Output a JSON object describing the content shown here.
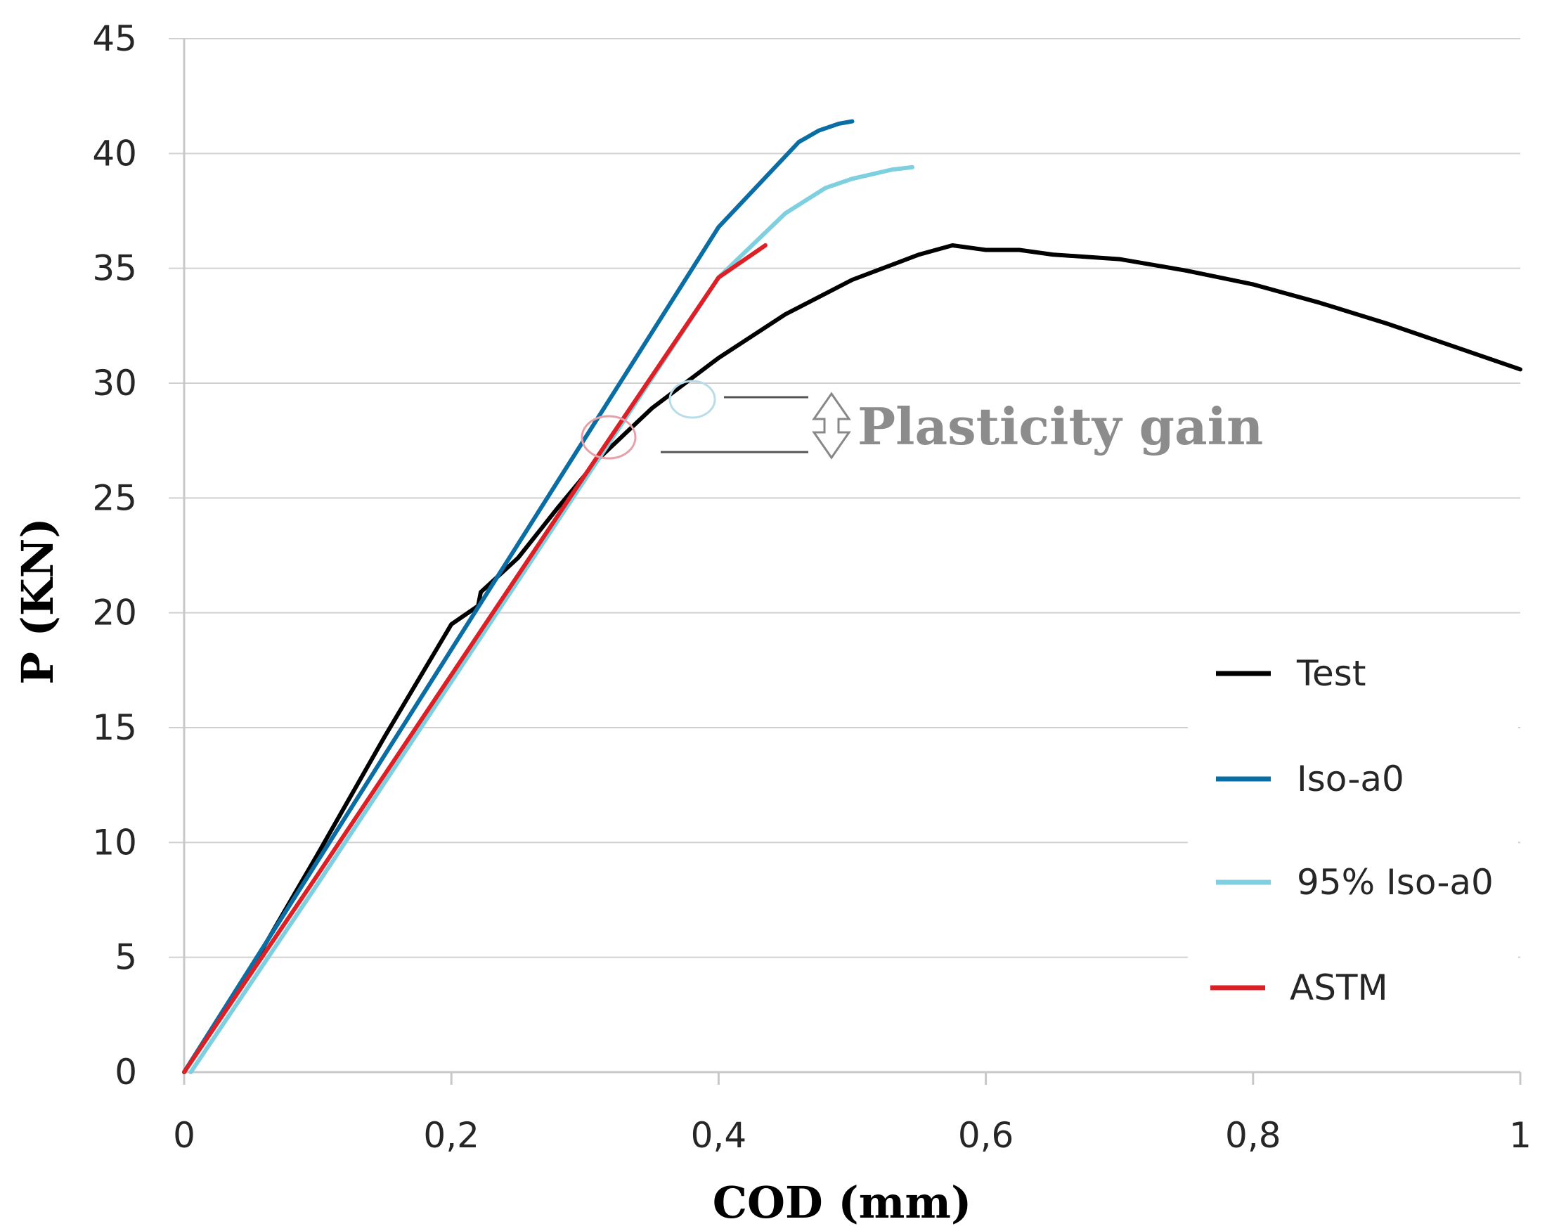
{
  "chart_data": {
    "type": "line",
    "title": "",
    "xlabel": "COD (mm)",
    "ylabel": "P (KN)",
    "xlim": [
      0,
      1
    ],
    "ylim": [
      0,
      45
    ],
    "x_ticks": [
      0,
      0.2,
      0.4,
      0.6,
      0.8,
      1
    ],
    "x_tick_labels": [
      "0",
      "0,2",
      "0,4",
      "0,6",
      "0,8",
      "1"
    ],
    "y_ticks": [
      0,
      5,
      10,
      15,
      20,
      25,
      30,
      35,
      40,
      45
    ],
    "y_tick_labels": [
      "0",
      "5",
      "10",
      "15",
      "20",
      "25",
      "30",
      "35",
      "40",
      "45"
    ],
    "grid": "horizontal",
    "legend_position": "right",
    "series": [
      {
        "name": "Test",
        "color": "#000000",
        "points": [
          [
            0,
            0
          ],
          [
            0.05,
            4.5
          ],
          [
            0.1,
            9.5
          ],
          [
            0.15,
            14.6
          ],
          [
            0.2,
            19.5
          ],
          [
            0.22,
            20.3
          ],
          [
            0.222,
            20.9
          ],
          [
            0.25,
            22.4
          ],
          [
            0.28,
            24.6
          ],
          [
            0.31,
            26.7
          ],
          [
            0.35,
            28.9
          ],
          [
            0.4,
            31.1
          ],
          [
            0.45,
            33.0
          ],
          [
            0.5,
            34.5
          ],
          [
            0.55,
            35.6
          ],
          [
            0.575,
            36.0
          ],
          [
            0.6,
            35.8
          ],
          [
            0.625,
            35.8
          ],
          [
            0.65,
            35.6
          ],
          [
            0.7,
            35.4
          ],
          [
            0.75,
            34.9
          ],
          [
            0.8,
            34.3
          ],
          [
            0.85,
            33.5
          ],
          [
            0.9,
            32.6
          ],
          [
            0.95,
            31.6
          ],
          [
            1.0,
            30.6
          ]
        ]
      },
      {
        "name": "Iso-a0",
        "color": "#0a6ea4",
        "points": [
          [
            0,
            0
          ],
          [
            0.1,
            9.2
          ],
          [
            0.2,
            18.4
          ],
          [
            0.3,
            27.6
          ],
          [
            0.4,
            36.8
          ],
          [
            0.46,
            40.5
          ],
          [
            0.475,
            41.0
          ],
          [
            0.49,
            41.3
          ],
          [
            0.5,
            41.4
          ]
        ]
      },
      {
        "name": "95% Iso-a0",
        "color": "#7ecfe0",
        "points": [
          [
            0.005,
            0
          ],
          [
            0.1,
            8.2
          ],
          [
            0.2,
            17.0
          ],
          [
            0.3,
            25.8
          ],
          [
            0.4,
            34.6
          ],
          [
            0.45,
            37.4
          ],
          [
            0.48,
            38.5
          ],
          [
            0.5,
            38.9
          ],
          [
            0.53,
            39.3
          ],
          [
            0.545,
            39.4
          ]
        ]
      },
      {
        "name": "ASTM",
        "color": "#dd1f26",
        "points": [
          [
            0,
            0
          ],
          [
            0.1,
            8.6
          ],
          [
            0.2,
            17.3
          ],
          [
            0.3,
            26.0
          ],
          [
            0.4,
            34.6
          ],
          [
            0.435,
            36.0
          ]
        ]
      }
    ],
    "annotations": [
      {
        "text": "Plasticity gain",
        "color": "#8c8c8c"
      }
    ]
  }
}
